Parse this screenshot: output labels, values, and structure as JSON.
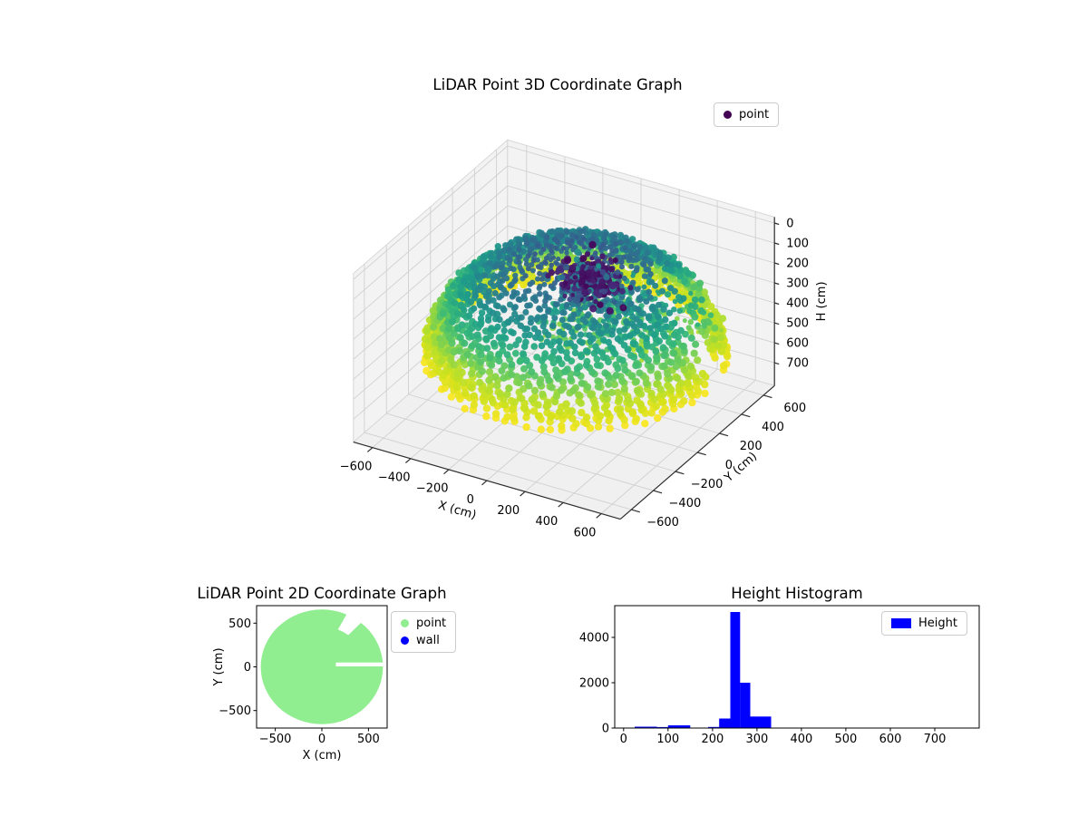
{
  "chart_data": [
    {
      "type": "scatter",
      "projection": "3d",
      "title": "LiDAR Point 3D Coordinate Graph",
      "xlabel": "X (cm)",
      "ylabel": "Y (cm)",
      "zlabel": "H (cm)",
      "xlim": [
        -700,
        700
      ],
      "ylim": [
        -700,
        700
      ],
      "zlim": [
        -30,
        815
      ],
      "z_axis_inverted": true,
      "xticks": [
        -600,
        -400,
        -200,
        0,
        200,
        400,
        600
      ],
      "yticks": [
        -600,
        -400,
        -200,
        0,
        200,
        400,
        600
      ],
      "zticks": [
        0,
        100,
        200,
        300,
        400,
        500,
        600,
        700
      ],
      "legend": [
        {
          "label": "point",
          "color": "#440154",
          "marker": "dot"
        }
      ],
      "legend_position": "upper-right",
      "colormap": "viridis",
      "color_by": "H",
      "vmin": -110,
      "vmax": 560,
      "point_cloud": {
        "description": "hemispherical dome of LiDAR returns, colored by height (viridis), dense dark cluster near apex, scattered mid-height returns, gaps where no returns",
        "dome": {
          "center": [
            20,
            70
          ],
          "rings": 24,
          "theta_min_deg": 8,
          "theta_max_deg": 90,
          "arc_spacing": 55,
          "shells": [
            {
              "radius": 680,
              "h_top": 55,
              "h_rim": 545
            },
            {
              "radius": 635,
              "h_top": 80,
              "h_rim": 520
            }
          ],
          "gaps": [
            {
              "az_from": 2,
              "az_to": 18,
              "rho_min": 240
            },
            {
              "az_from": 24,
              "az_to": 50,
              "theta_from": 32,
              "theta_to": 74
            }
          ]
        },
        "cluster": {
          "center": [
            60,
            120,
            175
          ],
          "sigma": [
            75,
            60,
            45
          ],
          "count": 280
        },
        "scatter_mid": {
          "x_range": [
            -60,
            360
          ],
          "y_range": [
            -180,
            320
          ],
          "h_range": [
            180,
            390
          ],
          "count": 300
        },
        "scatter_right": {
          "x_range": [
            330,
            620
          ],
          "y_range": [
            -40,
            360
          ],
          "h_range": [
            230,
            430
          ],
          "count": 80
        }
      }
    },
    {
      "type": "scatter",
      "projection": "2d",
      "title": "LiDAR Point 2D Coordinate Graph",
      "xlabel": "X (cm)",
      "ylabel": "Y (cm)",
      "xlim": [
        -700,
        700
      ],
      "ylim": [
        -700,
        700
      ],
      "xticks": [
        -500,
        0,
        500
      ],
      "yticks": [
        -500,
        0,
        500
      ],
      "legend": [
        {
          "label": "point",
          "color": "#90ee90",
          "marker": "dot"
        },
        {
          "label": "wall",
          "color": "#0000ff",
          "marker": "dot"
        }
      ],
      "legend_position": "outside-upper-right",
      "disc": {
        "center": [
          0,
          0
        ],
        "radius": 655,
        "color": "#90ee90",
        "slit": {
          "x_from": 150,
          "x_to": 690,
          "y_from": 5,
          "y_to": 50
        },
        "notch": {
          "az_from": 50,
          "az_to": 68,
          "rho_from": 460,
          "rho_to": 690
        }
      }
    },
    {
      "type": "bar",
      "title": "Height Histogram",
      "xlabel": "",
      "ylabel": "",
      "xlim": [
        -20,
        800
      ],
      "ylim": [
        0,
        5400
      ],
      "xticks": [
        0,
        100,
        200,
        300,
        400,
        500,
        600,
        700
      ],
      "yticks": [
        0,
        2000,
        4000
      ],
      "legend": [
        {
          "label": "Height",
          "color": "#0000ff",
          "marker": "patch"
        }
      ],
      "legend_position": "upper-right",
      "bars": [
        {
          "x0": 25,
          "x1": 75,
          "count": 60
        },
        {
          "x0": 75,
          "x1": 100,
          "count": 45
        },
        {
          "x0": 100,
          "x1": 150,
          "count": 120
        },
        {
          "x0": 150,
          "x1": 175,
          "count": 15
        },
        {
          "x0": 190,
          "x1": 215,
          "count": 50
        },
        {
          "x0": 215,
          "x1": 240,
          "count": 420
        },
        {
          "x0": 240,
          "x1": 262,
          "count": 5120
        },
        {
          "x0": 262,
          "x1": 285,
          "count": 2000
        },
        {
          "x0": 285,
          "x1": 332,
          "count": 510
        }
      ]
    }
  ]
}
